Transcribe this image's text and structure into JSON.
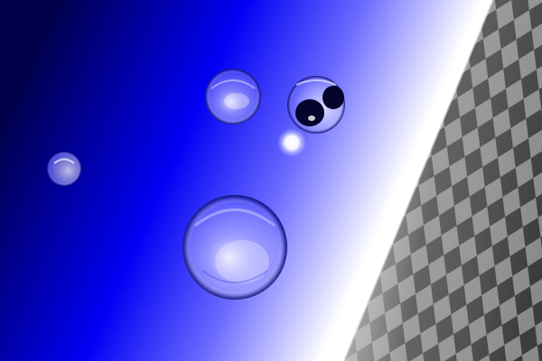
{
  "scene": {
    "kind": "raytraced-render",
    "sky": {
      "colors": [
        "#00005e",
        "#0000f4",
        "#ffffff"
      ]
    },
    "floor": {
      "pattern": "checkerboard",
      "colors": [
        "#3c3c3c",
        "#8a8a8a"
      ]
    },
    "light": {
      "color": "#ffffff"
    },
    "spheres": [
      {
        "name": "small-left-sphere",
        "material": "glass"
      },
      {
        "name": "upper-middle-sphere",
        "material": "glass"
      },
      {
        "name": "upper-right-sphere",
        "material": "glass"
      },
      {
        "name": "large-center-sphere",
        "material": "glass"
      }
    ]
  }
}
